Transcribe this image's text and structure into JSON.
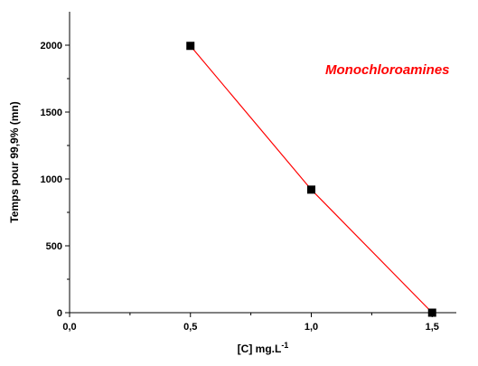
{
  "chart_data": {
    "type": "line",
    "x": [
      0.5,
      1.0,
      1.5
    ],
    "series": [
      {
        "values": [
          1995,
          920,
          0
        ],
        "color": "#ff0000",
        "marker": "square",
        "marker_color": "#000000"
      }
    ],
    "xlabel": "[C] mg.L",
    "xlabel_sup": "-1",
    "ylabel": "Temps pour 99,9% (mn)",
    "xlim": [
      0.0,
      1.6
    ],
    "ylim": [
      0,
      2250
    ],
    "xticks": [
      0.0,
      0.5,
      1.0,
      1.5
    ],
    "xtick_labels": [
      "0,0",
      "0,5",
      "1,0",
      "1,5"
    ],
    "yticks": [
      0,
      500,
      1000,
      1500,
      2000
    ],
    "ytick_labels": [
      "0",
      "500",
      "1000",
      "1500",
      "2000"
    ],
    "annotation": {
      "text": "Monochloroamines",
      "color": "#ff0000"
    },
    "grid": false
  }
}
